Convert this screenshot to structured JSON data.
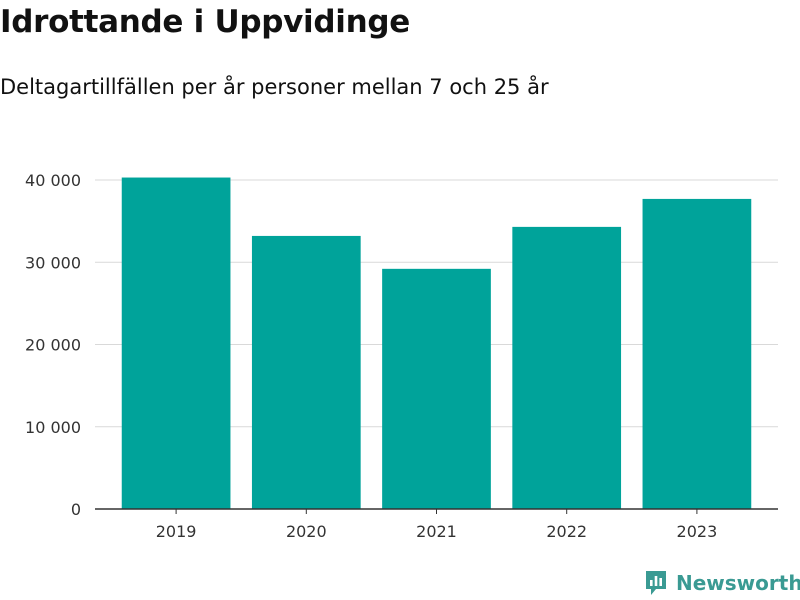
{
  "header": {
    "title": "Idrottande i Uppvidinge",
    "subtitle": "Deltagartillfällen per år personer mellan 7 och 25 år"
  },
  "brand": {
    "name": "Newsworthy",
    "icon": "newsworthy-logo-icon",
    "color": "#3a9a93"
  },
  "chart_data": {
    "type": "bar",
    "categories": [
      "2019",
      "2020",
      "2021",
      "2022",
      "2023"
    ],
    "values": [
      40300,
      33200,
      29200,
      34300,
      37700
    ],
    "ylim": [
      0,
      40000
    ],
    "yticks": [
      0,
      10000,
      20000,
      30000,
      40000
    ],
    "ytick_labels": [
      "0",
      "10 000",
      "20 000",
      "30 000",
      "40 000"
    ],
    "grid": true,
    "legend": "none",
    "bar_color": "#00a39a",
    "xlabel": "",
    "ylabel": ""
  }
}
